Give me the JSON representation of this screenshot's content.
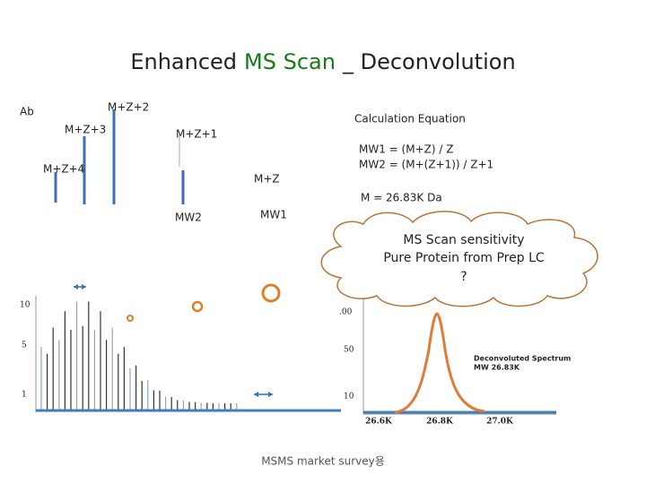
{
  "title": {
    "lead": "Enhanced",
    "highlight": "MS Scan",
    "tail": "_ Deconvolution"
  },
  "diagram": {
    "axis": "Ab",
    "peaks": [
      "M+Z+2",
      "M+Z+3",
      "M+Z+1",
      "M+Z+4",
      "M+Z"
    ],
    "mw": [
      "MW2",
      "MW1"
    ]
  },
  "equation": {
    "heading": "Calculation Equation",
    "lines": [
      "MW1 = (M+Z) / Z",
      "MW2 = (M+(Z+1)) / Z+1"
    ],
    "result": "M = 26.83K Da"
  },
  "cloud": {
    "lines": [
      "MS Scan sensitivity",
      "Pure Protein from Prep LC",
      "?"
    ]
  },
  "raw_spectrum": {
    "y_labels": [
      "10",
      "5",
      "1"
    ]
  },
  "deconvoluted": {
    "y_labels": [
      ".00",
      "50",
      "10"
    ],
    "x_labels": [
      "26.6K",
      "26.8K",
      "27.0K"
    ],
    "legend": [
      "Deconvoluted Spectrum",
      "MW 26.83K"
    ]
  },
  "footer": "MSMS market survey용"
}
